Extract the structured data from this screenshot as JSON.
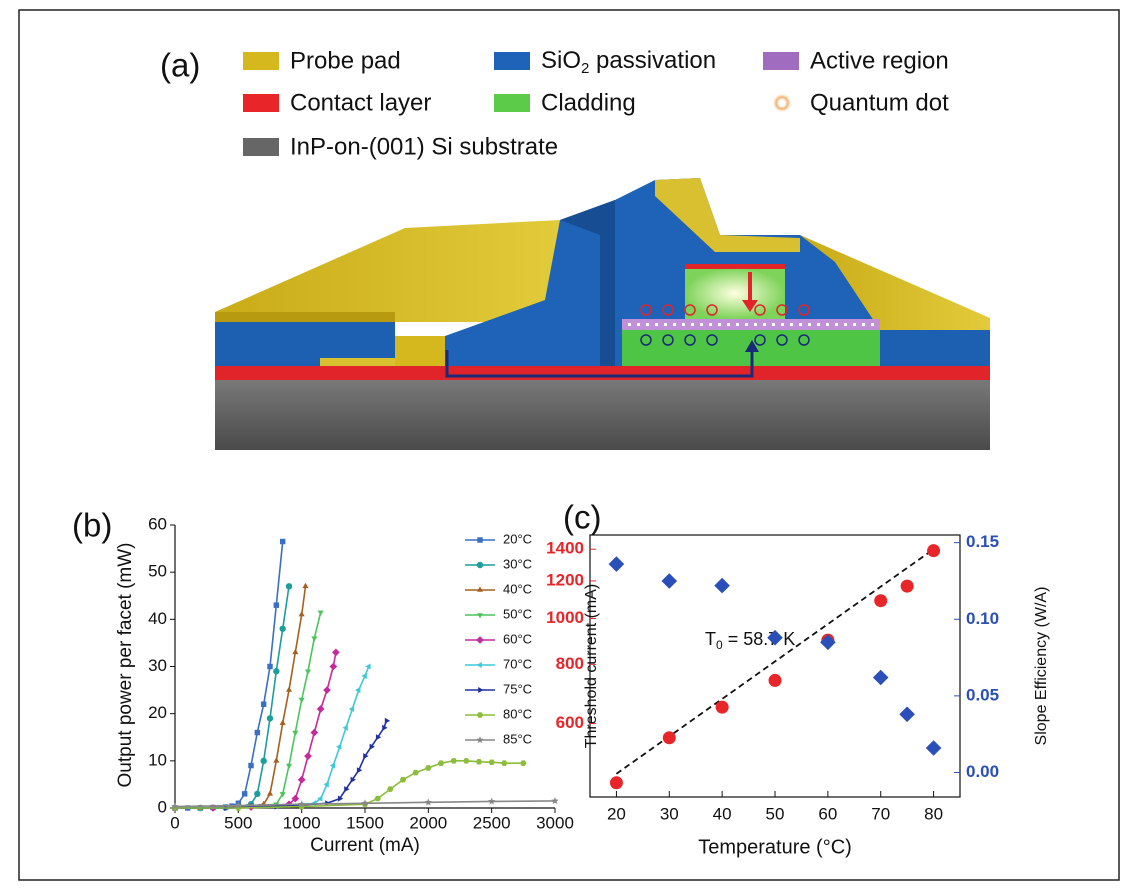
{
  "panel_a": {
    "label": "(a)",
    "legend": {
      "probe_pad": "Probe pad",
      "sio2": {
        "text": "SiO",
        "subscript": "2",
        "suffix": " passivation"
      },
      "active_region": "Active region",
      "contact_layer": "Contact layer",
      "cladding": "Cladding",
      "quantum_dot": "Quantum dot",
      "substrate": "InP-on-(001) Si substrate"
    }
  },
  "chart_data": [
    {
      "type": "line",
      "panel_label": "(b)",
      "xlabel": "Current (mA)",
      "ylabel": "Output power per facet (mW)",
      "xlim": [
        0,
        3000
      ],
      "xticks": [
        0,
        500,
        1000,
        1500,
        2000,
        2500,
        3000
      ],
      "ylim": [
        0,
        60
      ],
      "yticks": [
        0,
        10,
        20,
        30,
        40,
        50,
        60
      ],
      "legend": "upper right",
      "series": [
        {
          "name": "20°C",
          "color": "#3a6fc4",
          "marker": "square",
          "x": [
            0,
            100,
            200,
            300,
            400,
            450,
            500,
            550,
            600,
            650,
            700,
            750,
            800,
            850
          ],
          "values": [
            0,
            0,
            0,
            0.1,
            0.2,
            0.4,
            1,
            3,
            9,
            16,
            22,
            30,
            43,
            56.5
          ]
        },
        {
          "name": "30°C",
          "color": "#1c9e9a",
          "marker": "circle",
          "x": [
            0,
            200,
            400,
            500,
            600,
            650,
            700,
            750,
            800,
            850,
            900
          ],
          "values": [
            0,
            0,
            0.1,
            0.3,
            0.8,
            3,
            10,
            19,
            29,
            38,
            47
          ]
        },
        {
          "name": "40°C",
          "color": "#a5601f",
          "marker": "triangle-up",
          "x": [
            0,
            200,
            400,
            600,
            700,
            750,
            800,
            850,
            900,
            950,
            1000,
            1030
          ],
          "values": [
            0,
            0,
            0.1,
            0.4,
            0.8,
            3,
            10,
            18,
            25,
            33,
            41,
            47
          ]
        },
        {
          "name": "50°C",
          "color": "#4cc45c",
          "marker": "triangle-down",
          "x": [
            0,
            200,
            400,
            600,
            800,
            850,
            900,
            950,
            1000,
            1050,
            1100,
            1150
          ],
          "values": [
            0,
            0,
            0.1,
            0.3,
            0.8,
            3,
            9,
            16,
            23,
            29,
            36,
            41.5
          ]
        },
        {
          "name": "60°C",
          "color": "#c42a9c",
          "marker": "diamond",
          "x": [
            0,
            300,
            600,
            900,
            950,
            1000,
            1050,
            1100,
            1150,
            1200,
            1250,
            1270
          ],
          "values": [
            0,
            0,
            0.2,
            0.8,
            2,
            6,
            11,
            16,
            21,
            25,
            30,
            33
          ]
        },
        {
          "name": "70°C",
          "color": "#3ec8d8",
          "marker": "triangle-left",
          "x": [
            0,
            400,
            800,
            1100,
            1150,
            1200,
            1250,
            1300,
            1350,
            1400,
            1450,
            1500,
            1530
          ],
          "values": [
            0,
            0,
            0.3,
            1,
            2,
            5,
            9,
            13,
            17,
            21,
            25,
            28,
            30
          ]
        },
        {
          "name": "75°C",
          "color": "#2030a0",
          "marker": "triangle-right",
          "x": [
            0,
            400,
            800,
            1200,
            1300,
            1350,
            1400,
            1450,
            1500,
            1550,
            1600,
            1650,
            1670
          ],
          "values": [
            0,
            0,
            0.3,
            1,
            2,
            4,
            6,
            8,
            11,
            13,
            15,
            17,
            18.5
          ]
        },
        {
          "name": "80°C",
          "color": "#8cbd3c",
          "marker": "hexagon",
          "x": [
            0,
            500,
            1000,
            1500,
            1600,
            1700,
            1800,
            1900,
            2000,
            2100,
            2200,
            2300,
            2400,
            2500,
            2600,
            2750
          ],
          "values": [
            0,
            0,
            0.3,
            0.8,
            2,
            4,
            6,
            7.5,
            8.5,
            9.5,
            10,
            10,
            9.8,
            9.7,
            9.5,
            9.5
          ]
        },
        {
          "name": "85°C",
          "color": "#888888",
          "marker": "star",
          "x": [
            0,
            500,
            1000,
            1500,
            2000,
            2500,
            3000
          ],
          "values": [
            0.3,
            0.5,
            0.8,
            1,
            1.2,
            1.4,
            1.5
          ]
        }
      ]
    },
    {
      "type": "scatter",
      "panel_label": "(c)",
      "xlabel": "Temperature (°C)",
      "ylabel": "Threshold current (mA)",
      "y2label": "Slope Efficiency (W/A)",
      "xlim": [
        15,
        85
      ],
      "xticks": [
        20,
        30,
        40,
        50,
        60,
        70,
        80
      ],
      "ylog": true,
      "ylim": [
        420,
        1500
      ],
      "yticks": [
        600,
        800,
        1000,
        1200,
        1400
      ],
      "ycolor": "#e8262a",
      "y2lim": [
        -0.016,
        0.155
      ],
      "y2ticks": [
        {
          "value": 0,
          "label": "0.00"
        },
        {
          "value": 0.05,
          "label": "0.05"
        },
        {
          "value": 0.1,
          "label": "0.10"
        },
        {
          "value": 0.15,
          "label": "0.15"
        }
      ],
      "y2color": "#2b4fb8",
      "x": [
        20,
        30,
        40,
        50,
        60,
        70,
        75,
        80
      ],
      "series": [
        {
          "color": "#e8262a",
          "marker": "circle",
          "values": [
            450,
            560,
            650,
            740,
            900,
            1090,
            1170,
            1390
          ]
        },
        {
          "color": "#2b4fb8",
          "marker": "diamond",
          "axis": "y2",
          "values": [
            0.136,
            0.125,
            0.122,
            0.088,
            0.085,
            0.062,
            0.038,
            0.016
          ]
        }
      ],
      "fit": {
        "x": [
          20,
          80
        ],
        "values": [
          470,
          1400
        ]
      },
      "annotation": {
        "text": "T",
        "subscript": "0",
        "suffix": " = 58.7 K"
      }
    }
  ]
}
